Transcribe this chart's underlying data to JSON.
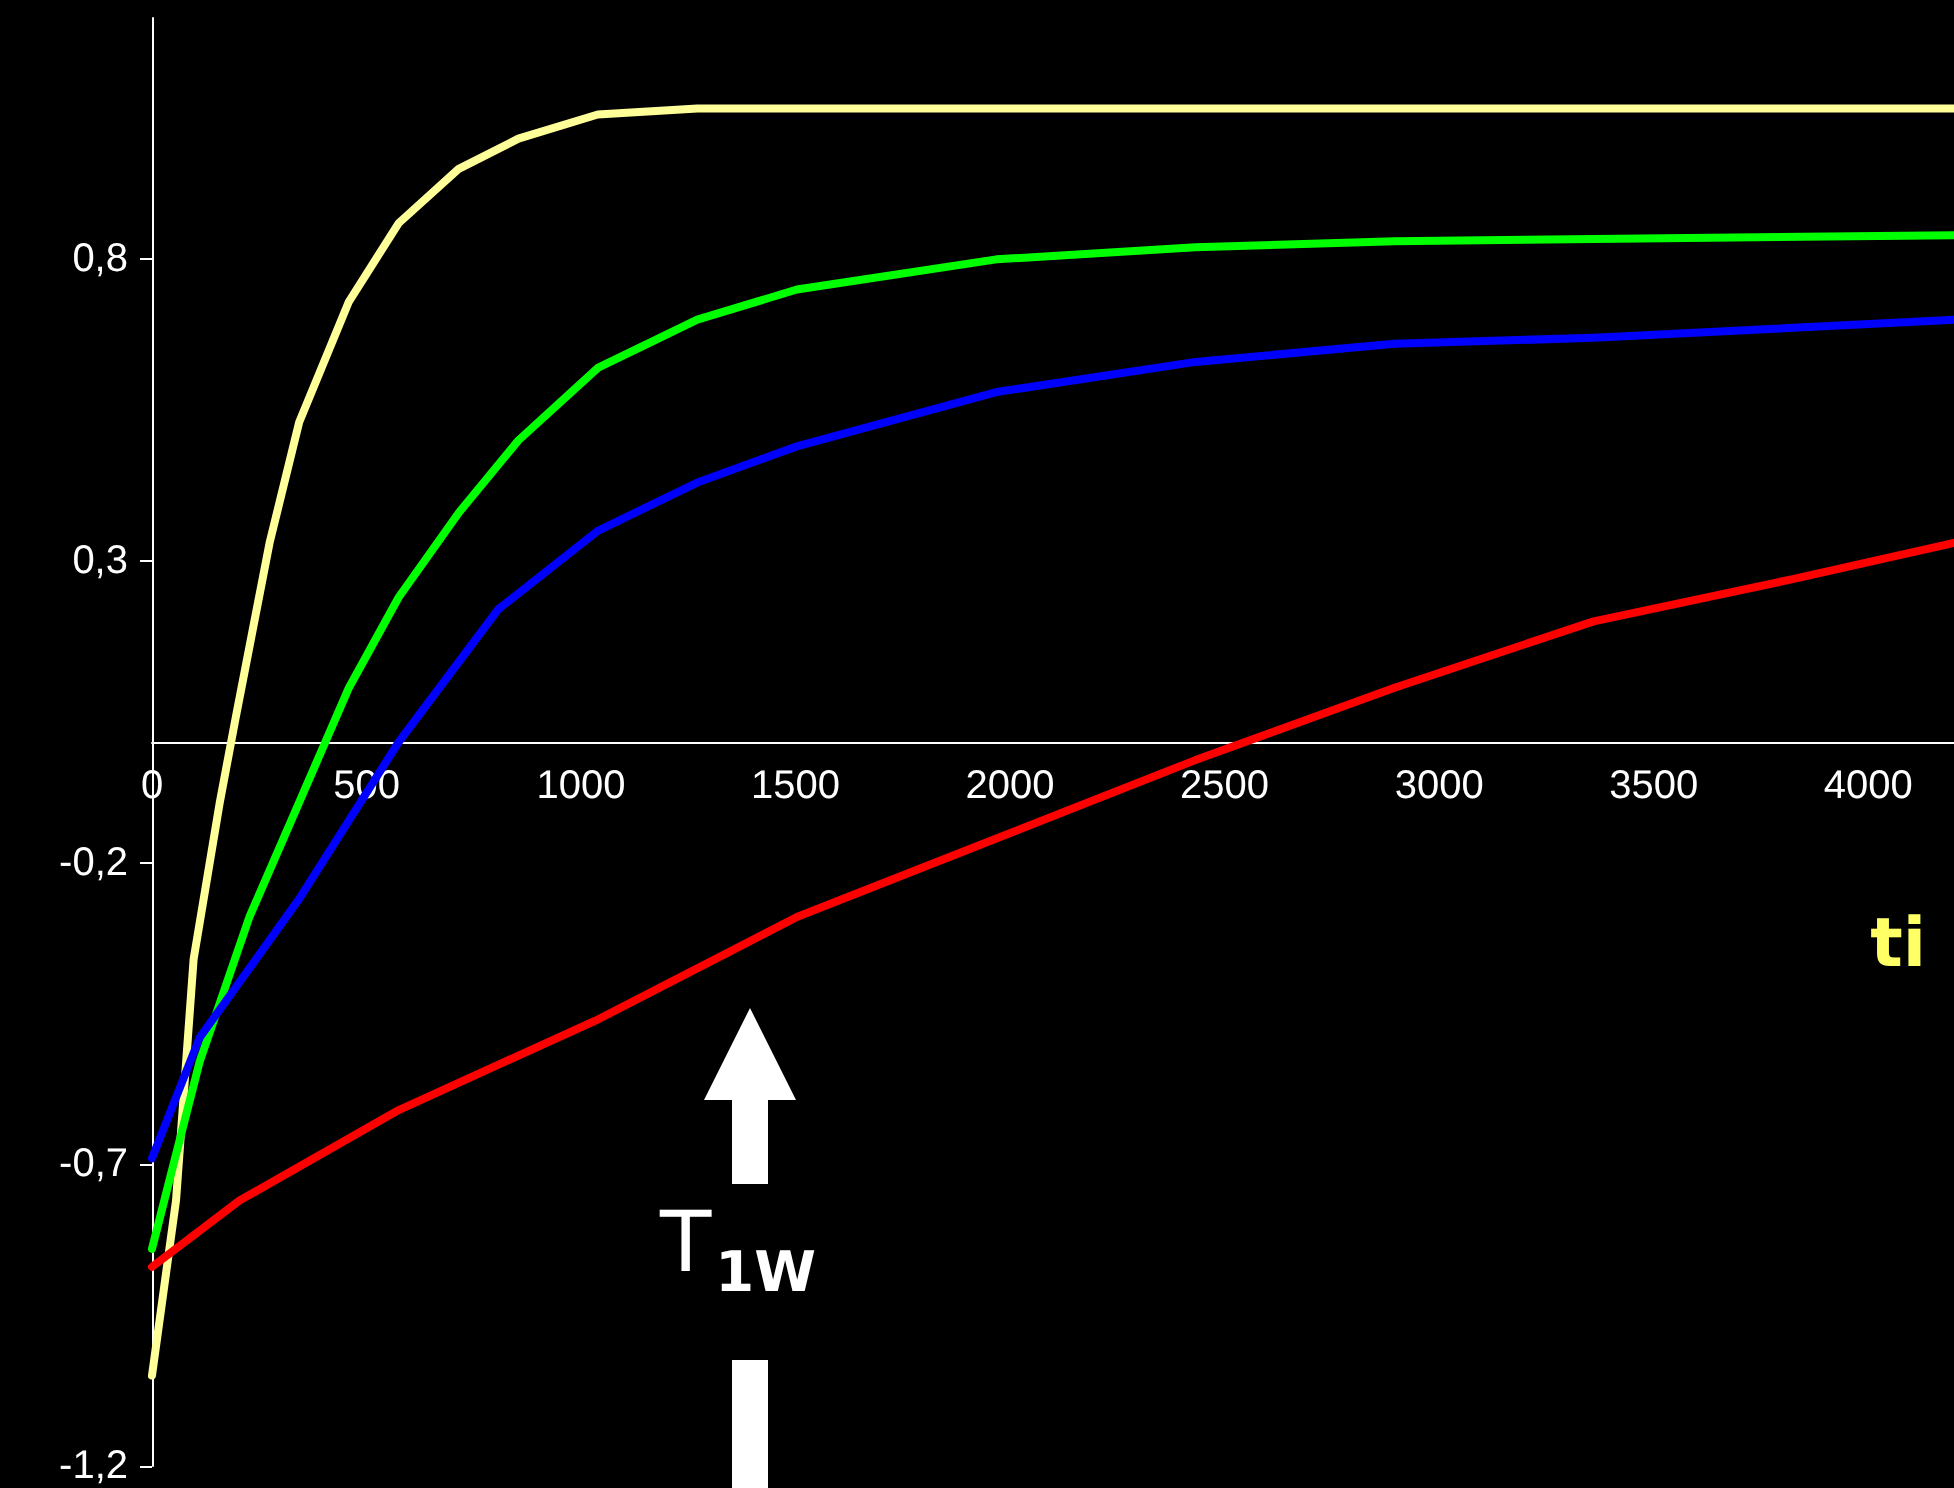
{
  "chart_data": {
    "type": "line",
    "xlabel": "ti",
    "annotations": [
      "T$_{1W}$"
    ],
    "xlim": [
      0,
      4200
    ],
    "xticks": [
      0,
      500,
      1000,
      1500,
      2000,
      2500,
      3000,
      3500,
      4000
    ],
    "ylim": [
      -1.2,
      1.2
    ],
    "yticks": [
      {
        "value": -1.2,
        "label": "-1,2"
      },
      {
        "value": -0.7,
        "label": "-0,7"
      },
      {
        "value": -0.2,
        "label": "-0,2"
      },
      {
        "value": 0.3,
        "label": "0,3"
      },
      {
        "value": 0.8,
        "label": "0,8"
      }
    ],
    "grid": false,
    "marker": "none",
    "line_style": "solid",
    "series": [
      {
        "color": "#ffff99",
        "x": [
          0,
          56,
          97,
          158,
          195,
          274,
          343,
          459,
          575,
          715,
          854,
          1039,
          1271,
          1503,
          4200
        ],
        "values": [
          -1.05,
          -0.76,
          -0.36,
          -0.1,
          0.04,
          0.33,
          0.53,
          0.73,
          0.86,
          0.95,
          1.0,
          1.04,
          1.05,
          1.05,
          1.05
        ]
      },
      {
        "color": "#00ff00",
        "x": [
          0,
          111,
          227,
          343,
          459,
          575,
          715,
          854,
          1039,
          1271,
          1503,
          1968,
          2432,
          2896,
          4200
        ],
        "values": [
          -0.84,
          -0.53,
          -0.29,
          -0.1,
          0.09,
          0.24,
          0.38,
          0.5,
          0.62,
          0.7,
          0.75,
          0.8,
          0.82,
          0.83,
          0.84
        ]
      },
      {
        "color": "#0000ff",
        "x": [
          0,
          111,
          343,
          575,
          807,
          1039,
          1271,
          1503,
          1968,
          2432,
          2896,
          3360,
          4200
        ],
        "values": [
          -0.69,
          -0.49,
          -0.26,
          0.0,
          0.22,
          0.35,
          0.43,
          0.49,
          0.58,
          0.63,
          0.66,
          0.67,
          0.7
        ]
      },
      {
        "color": "#ff0000",
        "x": [
          0,
          204,
          575,
          1039,
          1503,
          1968,
          2432,
          2896,
          3360,
          3824,
          4200
        ],
        "values": [
          -0.87,
          -0.76,
          -0.61,
          -0.46,
          -0.29,
          -0.16,
          -0.03,
          0.09,
          0.2,
          0.27,
          0.33
        ]
      }
    ]
  }
}
